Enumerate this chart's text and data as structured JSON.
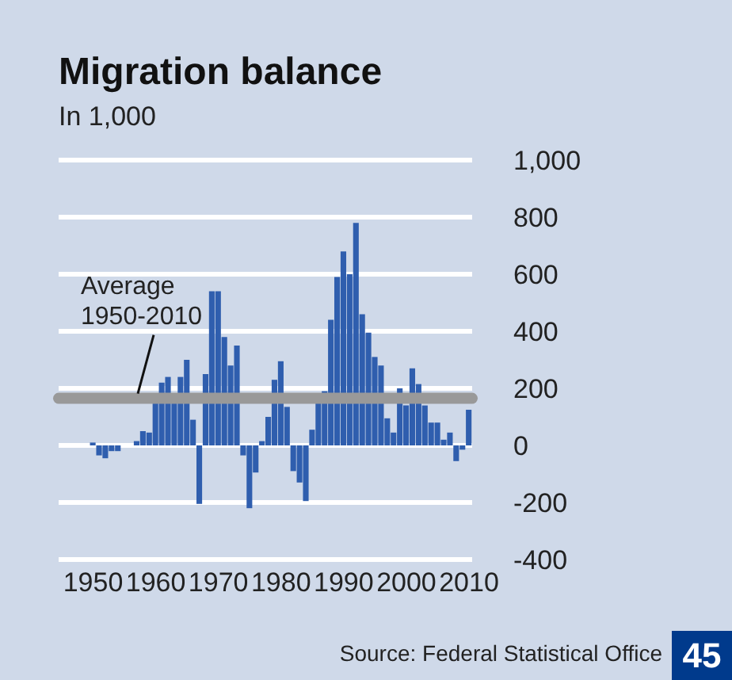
{
  "chart_data": {
    "type": "bar",
    "title": "Migration balance",
    "subtitle": "In 1,000",
    "x": [
      1950,
      1951,
      1952,
      1953,
      1954,
      1955,
      1956,
      1957,
      1958,
      1959,
      1960,
      1961,
      1962,
      1963,
      1964,
      1965,
      1966,
      1967,
      1968,
      1969,
      1970,
      1971,
      1972,
      1973,
      1974,
      1975,
      1976,
      1977,
      1978,
      1979,
      1980,
      1981,
      1982,
      1983,
      1984,
      1985,
      1986,
      1987,
      1988,
      1989,
      1990,
      1991,
      1992,
      1993,
      1994,
      1995,
      1996,
      1997,
      1998,
      1999,
      2000,
      2001,
      2002,
      2003,
      2004,
      2005,
      2006,
      2007,
      2008,
      2009,
      2010
    ],
    "values": [
      10,
      -35,
      -45,
      -20,
      -20,
      0,
      0,
      15,
      50,
      45,
      150,
      220,
      240,
      150,
      240,
      300,
      90,
      -205,
      250,
      540,
      540,
      380,
      280,
      350,
      -35,
      -220,
      -95,
      15,
      100,
      230,
      295,
      135,
      -90,
      -130,
      -195,
      55,
      150,
      190,
      440,
      590,
      680,
      600,
      780,
      460,
      395,
      310,
      280,
      95,
      45,
      200,
      140,
      270,
      215,
      140,
      80,
      80,
      20,
      45,
      -55,
      -15,
      125
    ],
    "color": "#2f5eae",
    "xlim": [
      1944.5,
      2010.5
    ],
    "xticks": [
      1950,
      1960,
      1970,
      1980,
      1990,
      2000,
      2010
    ],
    "ylim": [
      -400,
      1000
    ],
    "yticks": [
      -400,
      -200,
      0,
      200,
      400,
      600,
      800,
      {
        "value": 1000,
        "label": "1,000"
      }
    ],
    "grid": "y",
    "ref_lines": [
      {
        "axis": "y",
        "value": 165,
        "label": "Average 1950-2010",
        "color": "#999999"
      }
    ],
    "annotations": [
      "Source: Federal Statistical Office",
      "45"
    ]
  }
}
